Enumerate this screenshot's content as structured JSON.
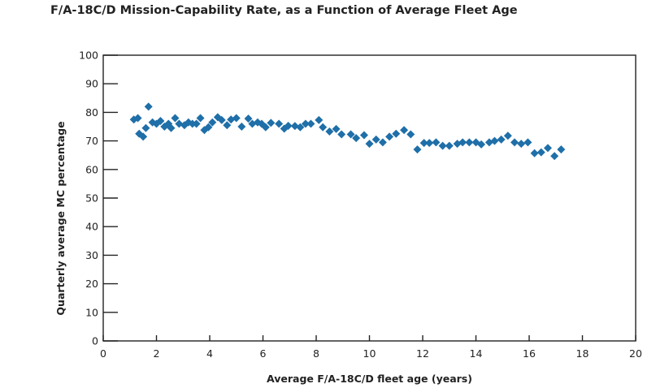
{
  "chart_data": {
    "type": "scatter",
    "title": "F/A-18C/D Mission-Capability Rate, as a Function of Average Fleet Age",
    "xlabel": "Average F/A-18C/D fleet age (years)",
    "ylabel": "Quarterly average MC percentage",
    "xlim": [
      0,
      20
    ],
    "ylim": [
      0,
      100
    ],
    "xticks": [
      0,
      2,
      4,
      6,
      8,
      10,
      12,
      14,
      16,
      18,
      20
    ],
    "yticks": [
      0,
      10,
      20,
      30,
      40,
      50,
      60,
      70,
      80,
      90,
      100
    ],
    "grid": false,
    "marker_color": "#1f6fa8",
    "points": [
      [
        1.15,
        77.5
      ],
      [
        1.3,
        78
      ],
      [
        1.35,
        72.5
      ],
      [
        1.5,
        71.5
      ],
      [
        1.6,
        74.5
      ],
      [
        1.7,
        82
      ],
      [
        1.85,
        76.5
      ],
      [
        2.0,
        76
      ],
      [
        2.15,
        77
      ],
      [
        2.3,
        75
      ],
      [
        2.45,
        76
      ],
      [
        2.55,
        74.5
      ],
      [
        2.7,
        78
      ],
      [
        2.85,
        76
      ],
      [
        3.05,
        75.5
      ],
      [
        3.2,
        76.5
      ],
      [
        3.35,
        76
      ],
      [
        3.5,
        76
      ],
      [
        3.65,
        78
      ],
      [
        3.8,
        73.8
      ],
      [
        3.95,
        74.8
      ],
      [
        4.1,
        76.5
      ],
      [
        4.3,
        78.3
      ],
      [
        4.45,
        77.3
      ],
      [
        4.65,
        75.5
      ],
      [
        4.8,
        77.5
      ],
      [
        5.0,
        78
      ],
      [
        5.2,
        75
      ],
      [
        5.45,
        77.8
      ],
      [
        5.6,
        76
      ],
      [
        5.8,
        76.5
      ],
      [
        5.95,
        76
      ],
      [
        6.1,
        74.8
      ],
      [
        6.3,
        76.3
      ],
      [
        6.6,
        76
      ],
      [
        6.8,
        74.3
      ],
      [
        6.95,
        75.3
      ],
      [
        7.2,
        75.2
      ],
      [
        7.4,
        74.8
      ],
      [
        7.6,
        76
      ],
      [
        7.8,
        76
      ],
      [
        8.1,
        77.3
      ],
      [
        8.25,
        74.8
      ],
      [
        8.5,
        73.3
      ],
      [
        8.75,
        74.2
      ],
      [
        8.95,
        72.3
      ],
      [
        9.3,
        72.3
      ],
      [
        9.5,
        71
      ],
      [
        9.8,
        72
      ],
      [
        10.0,
        69
      ],
      [
        10.25,
        70.5
      ],
      [
        10.5,
        69.5
      ],
      [
        10.75,
        71.5
      ],
      [
        11.0,
        72.5
      ],
      [
        11.3,
        73.8
      ],
      [
        11.55,
        72.3
      ],
      [
        11.8,
        67
      ],
      [
        12.05,
        69.3
      ],
      [
        12.25,
        69.3
      ],
      [
        12.5,
        69.5
      ],
      [
        12.75,
        68.3
      ],
      [
        13.0,
        68.3
      ],
      [
        13.3,
        69
      ],
      [
        13.5,
        69.5
      ],
      [
        13.75,
        69.5
      ],
      [
        14.0,
        69.5
      ],
      [
        14.2,
        68.8
      ],
      [
        14.5,
        69.5
      ],
      [
        14.7,
        70
      ],
      [
        14.95,
        70.5
      ],
      [
        15.2,
        71.8
      ],
      [
        15.45,
        69.5
      ],
      [
        15.7,
        69
      ],
      [
        15.95,
        69.5
      ],
      [
        16.2,
        65.7
      ],
      [
        16.45,
        66
      ],
      [
        16.7,
        67.5
      ],
      [
        16.95,
        64.7
      ],
      [
        17.2,
        67
      ]
    ]
  }
}
